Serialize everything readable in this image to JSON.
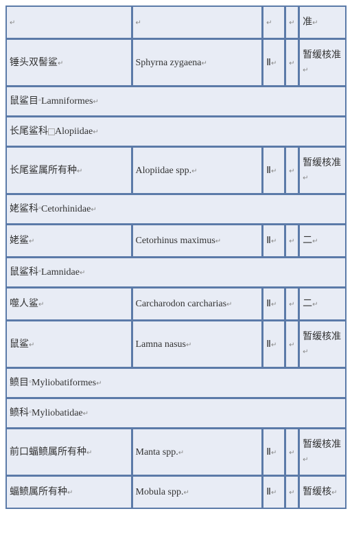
{
  "rows": [
    {
      "type": "data",
      "c1": "",
      "c2": "",
      "c3": "",
      "c4": "",
      "c5": "准"
    },
    {
      "type": "data",
      "c1": "锤头双髻鲨",
      "c2": "Sphyrna zygaena",
      "c3": "Ⅱ",
      "c4": "",
      "c5": "暂缓核准"
    },
    {
      "type": "section",
      "text": "鼠鲨目",
      "suffix": "Lamniformes"
    },
    {
      "type": "section",
      "text": "长尾鲨科",
      "box": true,
      "suffix": "Alopiidae"
    },
    {
      "type": "data",
      "c1": "长尾鲨属所有种",
      "c2": "Alopiidae spp.",
      "c3": "Ⅱ",
      "c4": "",
      "c5": "暂缓核准"
    },
    {
      "type": "section",
      "text": "姥鲨科",
      "suffix": "Cetorhinidae"
    },
    {
      "type": "data",
      "c1": "姥鲨",
      "c2": "Cetorhinus maximus",
      "c3": "Ⅱ",
      "c4": "",
      "c5": "二"
    },
    {
      "type": "section",
      "text": "鼠鲨科",
      "suffix": "Lamnidae"
    },
    {
      "type": "data",
      "c1": "噬人鲨",
      "c2": "Carcharodon carcharias",
      "c3": "Ⅱ",
      "c4": "",
      "c5": "二"
    },
    {
      "type": "data",
      "c1": "鼠鲨",
      "c2": "Lamna nasus",
      "c3": "Ⅱ",
      "c4": "",
      "c5": "暂缓核准"
    },
    {
      "type": "section",
      "text": "鲼目",
      "suffix": "Myliobatiformes"
    },
    {
      "type": "section",
      "text": "鲼科",
      "suffix": "Myliobatidae"
    },
    {
      "type": "data",
      "c1": "前口蝠鲼属所有种",
      "c2": "Manta spp.",
      "c3": "Ⅱ",
      "c4": "",
      "c5": "暂缓核准"
    },
    {
      "type": "data",
      "c1": "蝠鲼属所有种",
      "c2": "Mobula spp.",
      "c3": "Ⅱ",
      "c4": "",
      "c5": "暂缓核"
    }
  ],
  "colors": {
    "bg": "#e8ecf5",
    "border": "#5b7aa8",
    "text": "#333333"
  }
}
